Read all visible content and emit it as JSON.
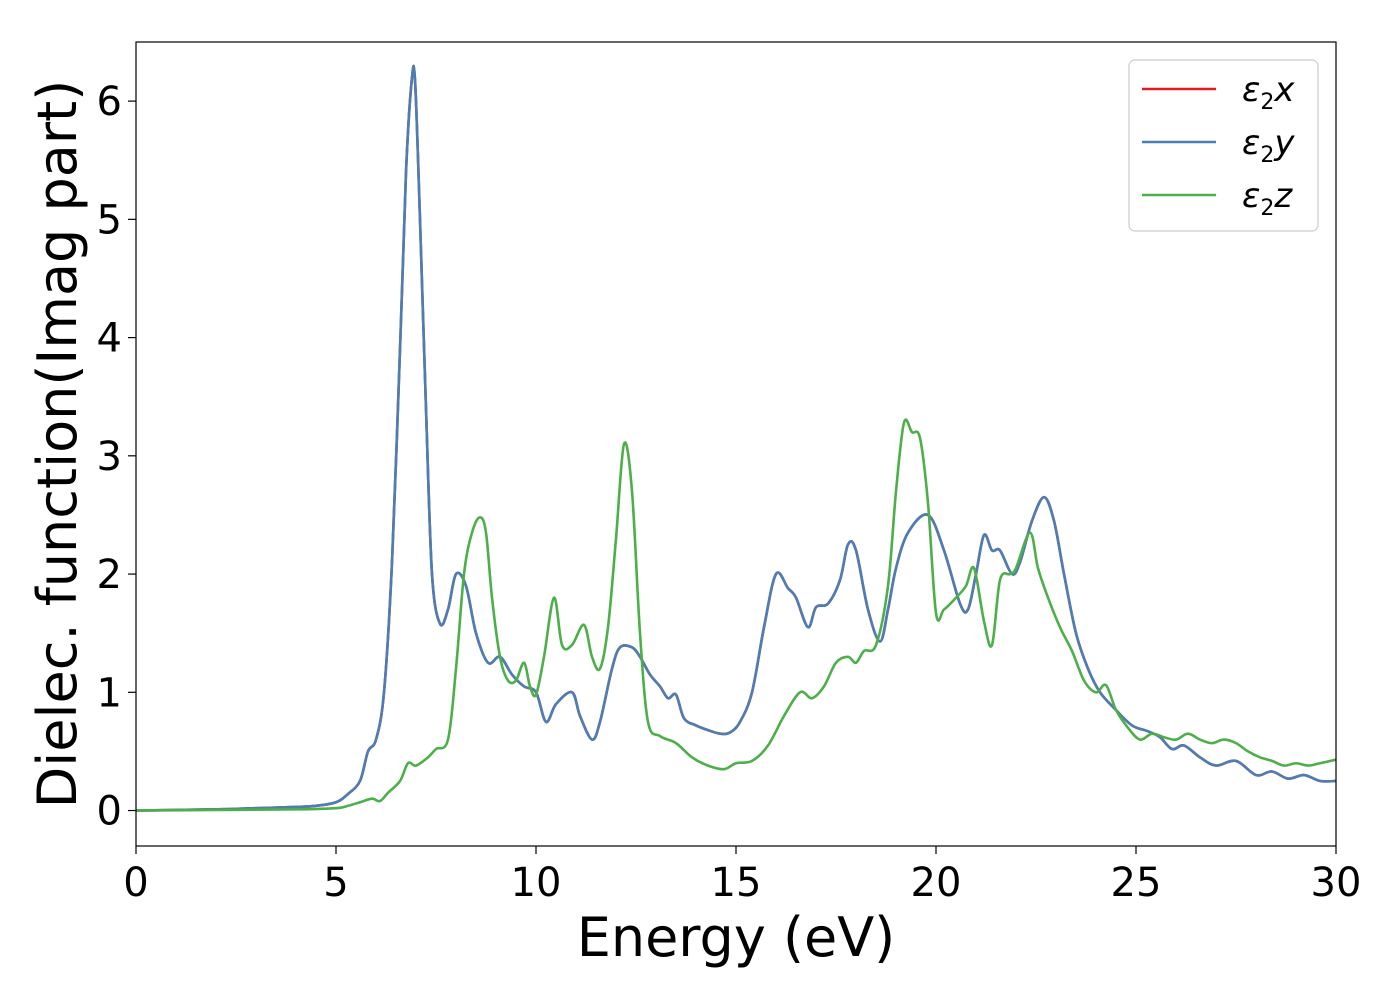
{
  "chart_data": {
    "type": "line",
    "title": "",
    "xlabel": "Energy (eV)",
    "ylabel": "Dielec. function(Imag part)",
    "xlim": [
      0,
      30
    ],
    "ylim": [
      -0.3,
      6.5
    ],
    "xticks": [
      0,
      5,
      10,
      15,
      20,
      25,
      30
    ],
    "yticks": [
      0,
      1,
      2,
      3,
      4,
      5,
      6
    ],
    "xtick_labels": [
      "0",
      "5",
      "10",
      "15",
      "20",
      "25",
      "30"
    ],
    "ytick_labels": [
      "0",
      "1",
      "2",
      "3",
      "4",
      "5",
      "6"
    ],
    "grid": false,
    "legend_position": "top-right",
    "series": [
      {
        "name": "ε2x",
        "symbol": "ε",
        "subscript": "2",
        "axis": "x",
        "color": "#e41a1c",
        "x": [
          0,
          2,
          3,
          4,
          4.5,
          5,
          5.3,
          5.6,
          5.8,
          6.0,
          6.2,
          6.4,
          6.6,
          6.75,
          6.9,
          6.98,
          7.1,
          7.25,
          7.4,
          7.6,
          7.8,
          8.0,
          8.25,
          8.5,
          8.8,
          9.1,
          9.4,
          9.7,
          10.0,
          10.25,
          10.5,
          10.9,
          11.1,
          11.4,
          11.6,
          11.9,
          12.1,
          12.4,
          12.6,
          12.85,
          13.1,
          13.3,
          13.5,
          13.7,
          14.0,
          14.3,
          14.6,
          14.85,
          15.1,
          15.4,
          15.7,
          16.0,
          16.3,
          16.5,
          16.8,
          17.0,
          17.3,
          17.6,
          17.8,
          18.0,
          18.3,
          18.6,
          18.8,
          19.0,
          19.3,
          19.8,
          20.2,
          20.6,
          20.8,
          21.0,
          21.2,
          21.4,
          21.6,
          21.9,
          22.1,
          22.4,
          22.7,
          22.95,
          23.2,
          23.5,
          23.8,
          24.1,
          24.5,
          24.9,
          25.3,
          25.6,
          25.9,
          26.2,
          26.6,
          27.0,
          27.5,
          28.0,
          28.4,
          28.8,
          29.2,
          29.6,
          30.0
        ],
        "y": [
          0.0,
          0.01,
          0.02,
          0.03,
          0.04,
          0.07,
          0.14,
          0.25,
          0.5,
          0.6,
          1.0,
          2.1,
          3.9,
          5.4,
          6.2,
          6.15,
          5.0,
          3.4,
          2.0,
          1.58,
          1.7,
          2.0,
          1.9,
          1.5,
          1.25,
          1.3,
          1.15,
          1.05,
          1.0,
          0.75,
          0.9,
          1.0,
          0.8,
          0.6,
          0.75,
          1.2,
          1.38,
          1.38,
          1.3,
          1.15,
          1.05,
          0.95,
          0.98,
          0.78,
          0.72,
          0.68,
          0.65,
          0.66,
          0.75,
          1.0,
          1.55,
          2.0,
          1.88,
          1.8,
          1.55,
          1.72,
          1.75,
          1.95,
          2.25,
          2.2,
          1.7,
          1.43,
          1.7,
          2.05,
          2.35,
          2.5,
          2.2,
          1.75,
          1.7,
          2.0,
          2.33,
          2.2,
          2.2,
          2.0,
          2.1,
          2.45,
          2.65,
          2.45,
          2.0,
          1.5,
          1.2,
          1.0,
          0.85,
          0.72,
          0.67,
          0.62,
          0.52,
          0.55,
          0.45,
          0.38,
          0.42,
          0.3,
          0.33,
          0.27,
          0.3,
          0.25,
          0.25
        ]
      },
      {
        "name": "ε2y",
        "symbol": "ε",
        "subscript": "2",
        "axis": "y",
        "color": "#4a7fb5",
        "x": [
          0,
          2,
          3,
          4,
          4.5,
          5,
          5.3,
          5.6,
          5.8,
          6.0,
          6.2,
          6.4,
          6.6,
          6.75,
          6.9,
          6.98,
          7.1,
          7.25,
          7.4,
          7.6,
          7.8,
          8.0,
          8.25,
          8.5,
          8.8,
          9.1,
          9.4,
          9.7,
          10.0,
          10.25,
          10.5,
          10.9,
          11.1,
          11.4,
          11.6,
          11.9,
          12.1,
          12.4,
          12.6,
          12.85,
          13.1,
          13.3,
          13.5,
          13.7,
          14.0,
          14.3,
          14.6,
          14.85,
          15.1,
          15.4,
          15.7,
          16.0,
          16.3,
          16.5,
          16.8,
          17.0,
          17.3,
          17.6,
          17.8,
          18.0,
          18.3,
          18.6,
          18.8,
          19.0,
          19.3,
          19.8,
          20.2,
          20.6,
          20.8,
          21.0,
          21.2,
          21.4,
          21.6,
          21.9,
          22.1,
          22.4,
          22.7,
          22.95,
          23.2,
          23.5,
          23.8,
          24.1,
          24.5,
          24.9,
          25.3,
          25.6,
          25.9,
          26.2,
          26.6,
          27.0,
          27.5,
          28.0,
          28.4,
          28.8,
          29.2,
          29.6,
          30.0
        ],
        "y": [
          0.0,
          0.01,
          0.02,
          0.03,
          0.04,
          0.07,
          0.14,
          0.25,
          0.5,
          0.6,
          1.0,
          2.1,
          3.9,
          5.4,
          6.2,
          6.15,
          5.0,
          3.4,
          2.0,
          1.58,
          1.7,
          2.0,
          1.9,
          1.5,
          1.25,
          1.3,
          1.15,
          1.05,
          1.0,
          0.75,
          0.9,
          1.0,
          0.8,
          0.6,
          0.75,
          1.2,
          1.38,
          1.38,
          1.3,
          1.15,
          1.05,
          0.95,
          0.98,
          0.78,
          0.72,
          0.68,
          0.65,
          0.66,
          0.75,
          1.0,
          1.55,
          2.0,
          1.88,
          1.8,
          1.55,
          1.72,
          1.75,
          1.95,
          2.25,
          2.2,
          1.7,
          1.43,
          1.7,
          2.05,
          2.35,
          2.5,
          2.2,
          1.75,
          1.7,
          2.0,
          2.33,
          2.2,
          2.2,
          2.0,
          2.1,
          2.45,
          2.65,
          2.45,
          2.0,
          1.5,
          1.2,
          1.0,
          0.85,
          0.72,
          0.67,
          0.62,
          0.52,
          0.55,
          0.45,
          0.38,
          0.42,
          0.3,
          0.33,
          0.27,
          0.3,
          0.25,
          0.25
        ]
      },
      {
        "name": "ε2z",
        "symbol": "ε",
        "subscript": "2",
        "axis": "z",
        "color": "#4daf4a",
        "x": [
          0,
          2,
          4,
          5,
          5.3,
          5.6,
          5.9,
          6.1,
          6.3,
          6.6,
          6.8,
          7.0,
          7.3,
          7.5,
          7.8,
          8.0,
          8.2,
          8.4,
          8.6,
          8.75,
          8.9,
          9.1,
          9.3,
          9.5,
          9.7,
          9.85,
          10.0,
          10.2,
          10.45,
          10.65,
          10.9,
          11.2,
          11.4,
          11.6,
          11.8,
          12.0,
          12.2,
          12.4,
          12.6,
          12.8,
          13.1,
          13.5,
          13.9,
          14.3,
          14.7,
          15.0,
          15.4,
          15.8,
          16.2,
          16.6,
          16.9,
          17.2,
          17.5,
          17.8,
          18.0,
          18.2,
          18.5,
          18.8,
          19.0,
          19.2,
          19.4,
          19.6,
          19.8,
          20.0,
          20.2,
          20.5,
          20.75,
          20.95,
          21.2,
          21.4,
          21.6,
          21.85,
          22.0,
          22.35,
          22.55,
          22.8,
          23.1,
          23.4,
          23.7,
          24.0,
          24.25,
          24.5,
          24.8,
          25.1,
          25.4,
          25.7,
          26.0,
          26.3,
          26.6,
          26.9,
          27.2,
          27.5,
          27.8,
          28.1,
          28.4,
          28.7,
          29.0,
          29.3,
          29.6,
          30.0
        ],
        "y": [
          0.0,
          0.005,
          0.01,
          0.02,
          0.04,
          0.07,
          0.1,
          0.08,
          0.15,
          0.25,
          0.4,
          0.38,
          0.45,
          0.52,
          0.6,
          1.2,
          2.0,
          2.35,
          2.48,
          2.35,
          1.8,
          1.3,
          1.1,
          1.1,
          1.25,
          1.05,
          0.98,
          1.3,
          1.8,
          1.4,
          1.4,
          1.57,
          1.3,
          1.2,
          1.55,
          2.3,
          3.1,
          2.7,
          1.5,
          0.75,
          0.63,
          0.57,
          0.45,
          0.38,
          0.35,
          0.4,
          0.42,
          0.55,
          0.8,
          1.0,
          0.95,
          1.05,
          1.25,
          1.3,
          1.25,
          1.35,
          1.4,
          1.9,
          2.7,
          3.28,
          3.2,
          3.15,
          2.6,
          1.67,
          1.7,
          1.8,
          1.9,
          2.05,
          1.6,
          1.4,
          1.95,
          2.0,
          2.05,
          2.35,
          2.05,
          1.8,
          1.55,
          1.35,
          1.1,
          1.0,
          1.06,
          0.85,
          0.7,
          0.6,
          0.65,
          0.62,
          0.6,
          0.65,
          0.6,
          0.57,
          0.6,
          0.57,
          0.5,
          0.45,
          0.42,
          0.38,
          0.4,
          0.38,
          0.4,
          0.43
        ]
      }
    ]
  }
}
